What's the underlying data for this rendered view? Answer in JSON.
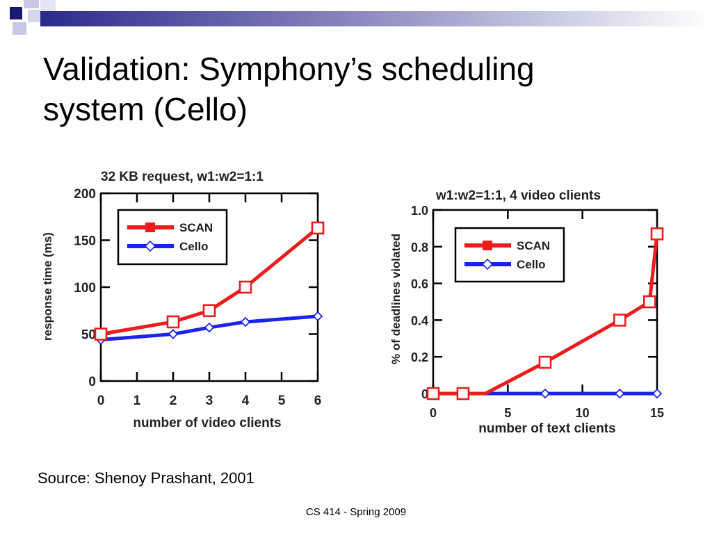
{
  "slide": {
    "title_line1": "Validation: Symphony’s scheduling",
    "title_line2": "system (Cello)",
    "source": "Source: Shenoy Prashant, 2001",
    "footer": "CS 414 - Spring 2009"
  },
  "colors": {
    "scan": "#ee1c1c",
    "cello": "#1a22ee",
    "accent": "#2a2a8c"
  },
  "chart_data": [
    {
      "type": "line",
      "title": "32 KB request, w1:w2=1:1",
      "xlabel": "number of video clients",
      "ylabel": "response time (ms)",
      "xlim": [
        0,
        6
      ],
      "ylim": [
        0,
        200
      ],
      "xticks": [
        0,
        1,
        2,
        3,
        4,
        5,
        6
      ],
      "yticks": [
        0,
        50,
        100,
        150,
        200
      ],
      "legend": "top-left",
      "series": [
        {
          "name": "SCAN",
          "marker": "square",
          "x": [
            0,
            2,
            3,
            4,
            6
          ],
          "y": [
            50,
            63,
            75,
            100,
            163
          ]
        },
        {
          "name": "Cello",
          "marker": "diamond",
          "x": [
            0,
            2,
            3,
            4,
            6
          ],
          "y": [
            44,
            50,
            57,
            63,
            69
          ]
        }
      ]
    },
    {
      "type": "line",
      "title": "w1:w2=1:1, 4 video clients",
      "xlabel": "number of text clients",
      "ylabel": "% of deadlines violated",
      "xlim": [
        0,
        15
      ],
      "ylim": [
        0,
        1.0
      ],
      "xticks": [
        0,
        5,
        10,
        15
      ],
      "yticks": [
        0,
        0.2,
        0.4,
        0.6,
        0.8,
        1.0
      ],
      "ytick_labels": [
        "0",
        "0.2",
        "0.4",
        "0.6",
        "0.8",
        "1.0"
      ],
      "legend": "top-left",
      "series": [
        {
          "name": "SCAN",
          "marker": "square",
          "x": [
            0,
            2,
            3.5,
            7.5,
            12.5,
            14.5,
            15
          ],
          "y": [
            0,
            0,
            0,
            0.17,
            0.4,
            0.5,
            0.87
          ],
          "marked": [
            true,
            true,
            false,
            true,
            true,
            true,
            true
          ]
        },
        {
          "name": "Cello",
          "marker": "diamond",
          "x": [
            0,
            2,
            7.5,
            12.5,
            15
          ],
          "y": [
            0,
            0,
            0,
            0,
            0
          ]
        }
      ]
    }
  ]
}
